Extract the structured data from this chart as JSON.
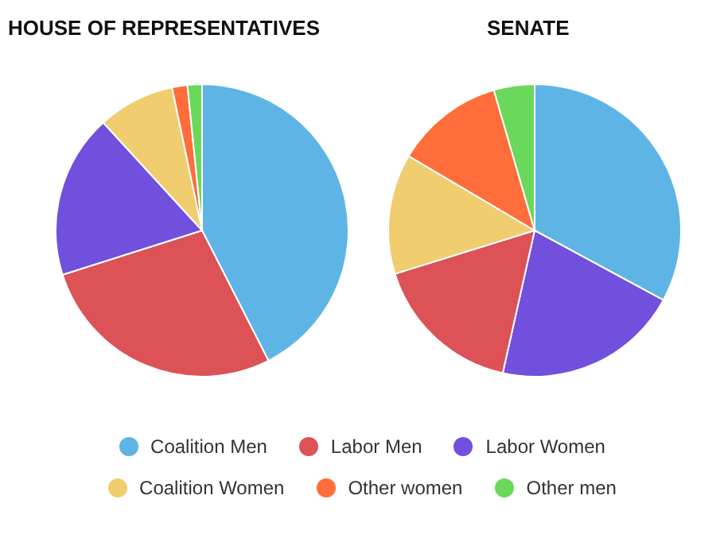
{
  "chart_data": [
    {
      "type": "pie",
      "title": "HOUSE OF REPRESENTATIVES",
      "categories": [
        "Coalition Men",
        "Labor Men",
        "Labor Women",
        "Coalition Women",
        "Other women",
        "Other men"
      ],
      "values": [
        42.5,
        27.6,
        18.1,
        8.5,
        1.7,
        1.6
      ],
      "colors": [
        "#5eb5e5",
        "#dc5257",
        "#7050dc",
        "#f0cd6e",
        "#fe6d3a",
        "#6ad85a"
      ],
      "legend": "bottom"
    },
    {
      "type": "pie",
      "title": "SENATE",
      "categories": [
        null,
        null,
        null,
        null,
        null,
        null
      ],
      "values": [
        32.9,
        20.6,
        16.7,
        13.3,
        12.0,
        4.5
      ],
      "colors": [
        "#5eb5e5",
        "#7050dc",
        "#dc5257",
        "#f0cd6e",
        "#fe6d3a",
        "#6ad85a"
      ]
    }
  ]
}
